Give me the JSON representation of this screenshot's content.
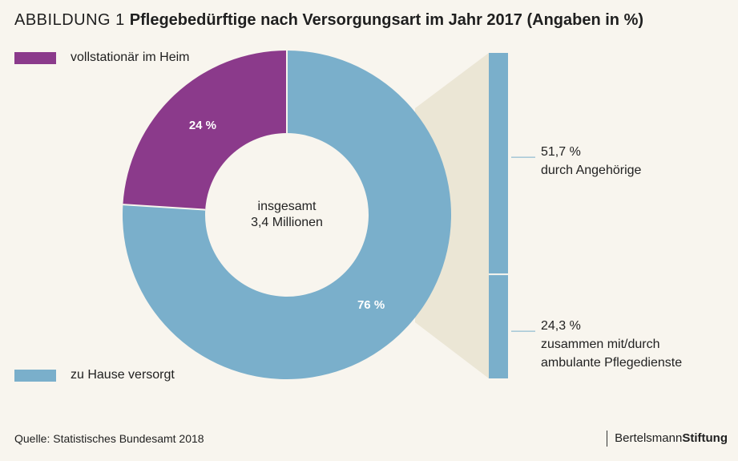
{
  "header": {
    "label": "ABBILDUNG 1",
    "title": "Pflegebedürftige nach Versorgungsart im Jahr 2017 (Angaben in %)"
  },
  "legend": [
    {
      "label": "vollstationär im Heim",
      "color": "#8b3a8b"
    },
    {
      "label": "zu Hause versorgt",
      "color": "#7aafcb"
    }
  ],
  "chart_data": {
    "type": "pie",
    "donut": true,
    "center_label": [
      "insgesamt",
      "3,4 Millionen"
    ],
    "slices": [
      {
        "label": "zu Hause versorgt",
        "value": 76,
        "display": "76 %",
        "color": "#7aafcb"
      },
      {
        "label": "vollstationär im Heim",
        "value": 24,
        "display": "24 %",
        "color": "#8b3a8b"
      }
    ],
    "breakdown": {
      "of": "zu Hause versorgt",
      "segments": [
        {
          "value": 51.7,
          "value_label": "51,7 %",
          "label_lines": [
            "durch Angehörige"
          ]
        },
        {
          "value": 24.3,
          "value_label": "24,3 %",
          "label_lines": [
            "zusammen mit/durch",
            "ambulante Pflegedienste"
          ]
        }
      ]
    }
  },
  "footer": {
    "source": "Quelle: Statistisches Bundesamt 2018",
    "brand_part1": "Bertelsmann",
    "brand_part2": "Stiftung"
  }
}
